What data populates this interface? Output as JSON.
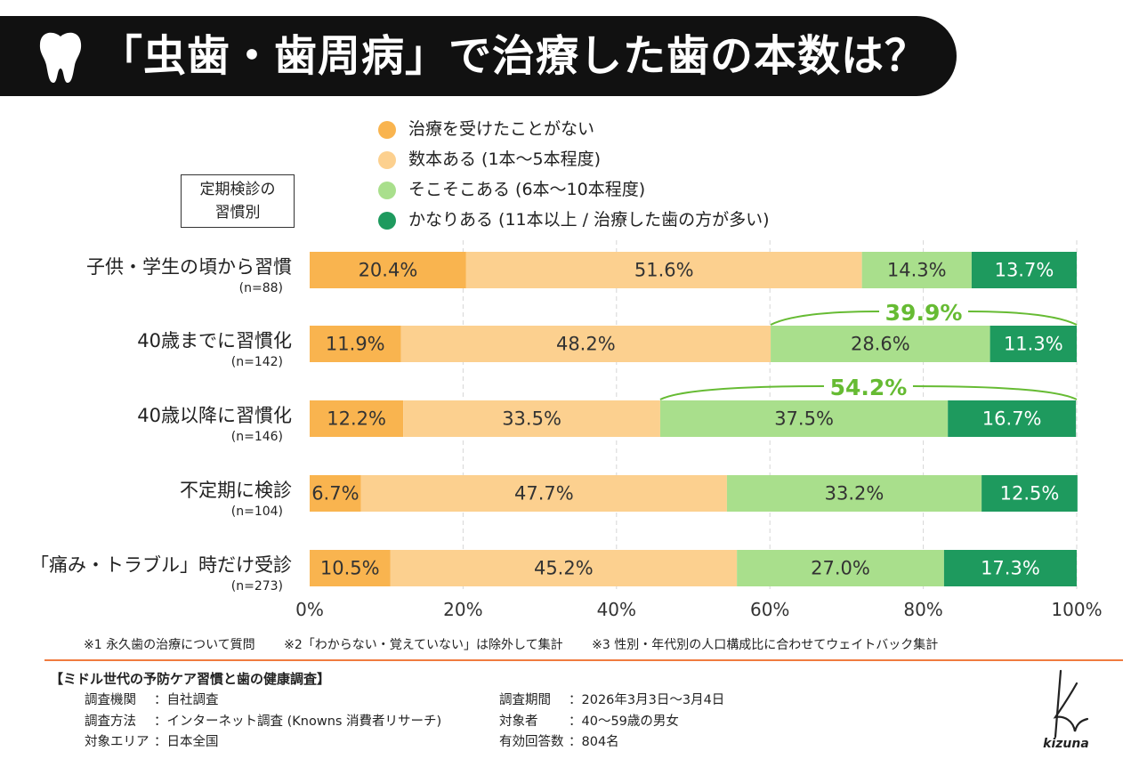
{
  "title": "「虫歯・歯周病」で治療した歯の本数は？",
  "group_label_line1": "定期検診の",
  "group_label_line2": "習慣別",
  "legend": [
    {
      "label": "治療を受けたことがない",
      "color": "#F9B44F"
    },
    {
      "label": "数本ある (1本〜5本程度)",
      "color": "#FCD08F"
    },
    {
      "label": "そこそこある (6本〜10本程度)",
      "color": "#A9DF8C"
    },
    {
      "label": "かなりある (11本以上 / 治療した歯の方が多い)",
      "color": "#1E9A5E"
    }
  ],
  "chart_data": {
    "type": "bar",
    "orientation": "horizontal-stacked",
    "categories": [
      {
        "label": "子供・学生の頃から習慣",
        "n": "(n=88)"
      },
      {
        "label": "40歳までに習慣化",
        "n": "(n=142)"
      },
      {
        "label": "40歳以降に習慣化",
        "n": "(n=146)"
      },
      {
        "label": "不定期に検診",
        "n": "(n=104)"
      },
      {
        "label": "「痛み・トラブル」時だけ受診",
        "n": "(n=273)"
      }
    ],
    "series": [
      {
        "name": "治療を受けたことがない",
        "values": [
          20.4,
          11.9,
          12.2,
          6.7,
          10.5
        ],
        "labels": [
          "20.4%",
          "11.9%",
          "12.2%",
          "6.7%",
          "10.5%"
        ]
      },
      {
        "name": "数本ある (1本〜5本程度)",
        "values": [
          51.6,
          48.2,
          33.5,
          47.7,
          45.2
        ],
        "labels": [
          "51.6%",
          "48.2%",
          "33.5%",
          "47.7%",
          "45.2%"
        ]
      },
      {
        "name": "そこそこある (6本〜10本程度)",
        "values": [
          14.3,
          28.6,
          37.5,
          33.2,
          27.0
        ],
        "labels": [
          "14.3%",
          "28.6%",
          "37.5%",
          "33.2%",
          "27.0%"
        ]
      },
      {
        "name": "かなりある (11本以上 / 治療した歯の方が多い)",
        "values": [
          13.7,
          11.3,
          16.7,
          12.5,
          17.3
        ],
        "labels": [
          "13.7%",
          "11.3%",
          "16.7%",
          "12.5%",
          "17.3%"
        ]
      }
    ],
    "xlim": [
      0,
      100
    ],
    "x_ticks": [
      "0%",
      "20%",
      "40%",
      "60%",
      "80%",
      "100%"
    ],
    "grid": true,
    "annotations": [
      {
        "category_index": 1,
        "text": "39.9%",
        "color": "#66BB33"
      },
      {
        "category_index": 2,
        "text": "54.2%",
        "color": "#66BB33"
      }
    ]
  },
  "footnotes": [
    "※1 永久歯の治療について質問",
    "※2「わからない・覚えていない」は除外して集計",
    "※3 性別・年代別の人口構成比に合わせてウェイトバック集計"
  ],
  "survey_title": "【ミドル世代の予防ケア習慣と歯の健康調査】",
  "survey_left": [
    {
      "key": "調査機関",
      "value": "：自社調査"
    },
    {
      "key": "調査方法",
      "value": "：インターネット調査 (Knowns 消費者リサーチ)"
    },
    {
      "key": "対象エリア",
      "value": "：日本全国"
    }
  ],
  "survey_right": [
    {
      "key": "調査期間",
      "value": "：2026年3月3日〜3月4日"
    },
    {
      "key": "対象者",
      "value": "：40〜59歳の男女"
    },
    {
      "key": "有効回答数",
      "value": "：804名"
    }
  ],
  "logo_text": "kizuna"
}
